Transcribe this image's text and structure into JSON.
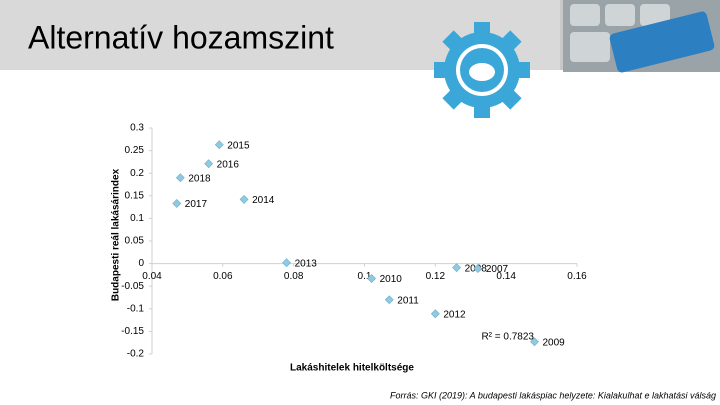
{
  "header": {
    "title": "Alternatív hozamszint"
  },
  "chart_data": {
    "type": "scatter",
    "x_label": "Lakáshitelek hitelköltsége",
    "y_label": "Budapesti reál lakásárindex",
    "labels": [
      "2015",
      "2016",
      "2018",
      "2017",
      "2014",
      "2013",
      "2010",
      "2008",
      "2007",
      "2011",
      "2012",
      "2009"
    ],
    "x": [
      0.059,
      0.056,
      0.048,
      0.047,
      0.066,
      0.078,
      0.102,
      0.126,
      0.132,
      0.107,
      0.12,
      0.148
    ],
    "values": [
      0.263,
      0.221,
      0.19,
      0.133,
      0.142,
      0.002,
      -0.033,
      -0.009,
      -0.011,
      -0.08,
      -0.111,
      -0.173
    ],
    "color": "#8ecae0",
    "xlim": [
      0.04,
      0.16
    ],
    "xticks": [
      0.04,
      0.06,
      0.08,
      0.1,
      0.12,
      0.14,
      0.16
    ],
    "ylim": [
      -0.2,
      0.3
    ],
    "yticks": [
      0.3,
      0.25,
      0.2,
      0.15,
      0.1,
      0.05,
      0,
      -0.05,
      -0.1,
      -0.15,
      -0.2
    ],
    "annotation": "R² = 0.7823"
  },
  "footer": {
    "source": "Forrás: GKI (2019): A budapesti lakáspiac helyzete: Kialakulhat e lakhatási válság"
  }
}
